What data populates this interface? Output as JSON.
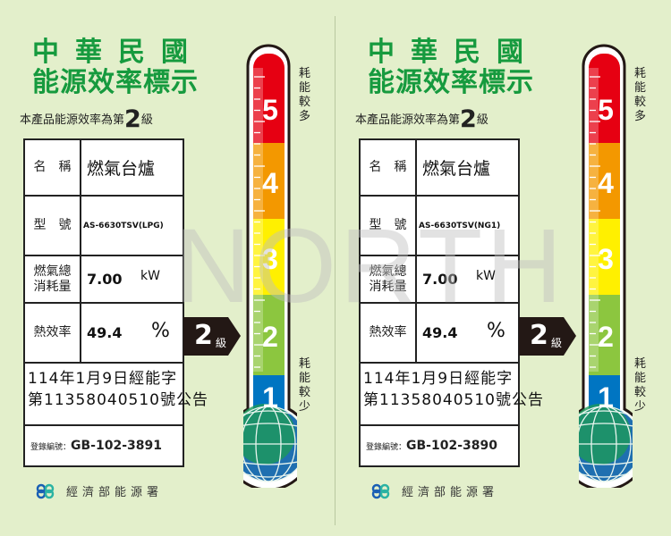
{
  "title_line1": "中華民國",
  "title_line2": "能源效率標示",
  "grade_prefix": "本產品能源效率為第",
  "grade": "2",
  "grade_suffix": "級",
  "fields": {
    "name": "名　稱",
    "model": "型　號",
    "consumption": "燃氣總消耗量",
    "efficiency": "熱效率",
    "reg": "登錄編號："
  },
  "units": {
    "consumption": "kW",
    "efficiency": "%"
  },
  "scale_more": "耗能較多",
  "scale_less": "耗能較少",
  "scale_levels": [
    "5",
    "4",
    "3",
    "2",
    "1"
  ],
  "scale_colors": [
    "#e60012",
    "#f39800",
    "#fff000",
    "#8cc63f",
    "#0075c2"
  ],
  "ministry": "經濟部能源署",
  "watermark": "NORTH",
  "labels": [
    {
      "name": "燃氣台爐",
      "model": "AS-6630TSV(LPG)",
      "consumption": "7.00",
      "efficiency": "49.4",
      "notice_line1": "114年1月9日經能字",
      "notice_line2": "第11358040510號公告",
      "reg_no": "GB-102-3891"
    },
    {
      "name": "燃氣台爐",
      "model": "AS-6630TSV(NG1)",
      "consumption": "7.00",
      "efficiency": "49.4",
      "notice_line1": "114年1月9日經能字",
      "notice_line2": "第11358040510號公告",
      "reg_no": "GB-102-3890"
    }
  ]
}
